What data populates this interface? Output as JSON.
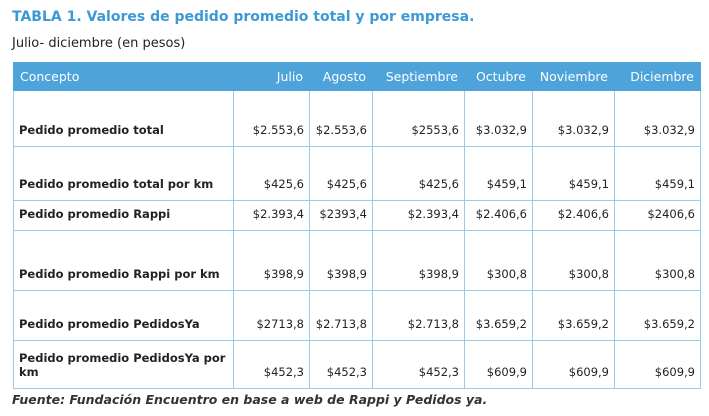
{
  "header": {
    "title": "TABLA 1. Valores de pedido promedio total y por empresa.",
    "subtitle": "Julio- diciembre (en pesos)"
  },
  "table": {
    "columns": [
      "Concepto",
      "Julio",
      "Agosto",
      "Septiembre",
      "Octubre",
      "Noviembre",
      "Diciembre"
    ],
    "rows": [
      [
        "Pedido promedio total",
        "$2.553,6",
        "$2.553,6",
        "$2553,6",
        "$3.032,9",
        "$3.032,9",
        "$3.032,9"
      ],
      [
        "Pedido promedio total por km",
        "$425,6",
        "$425,6",
        "$425,6",
        "$459,1",
        "$459,1",
        "$459,1"
      ],
      [
        "Pedido promedio Rappi",
        "$2.393,4",
        "$2393,4",
        "$2.393,4",
        "$2.406,6",
        "$2.406,6",
        "$2406,6"
      ],
      [
        "Pedido promedio Rappi por km",
        "$398,9",
        "$398,9",
        "$398,9",
        "$300,8",
        "$300,8",
        "$300,8"
      ],
      [
        "Pedido promedio PedidosYa",
        "$2713,8",
        "$2.713,8",
        "$2.713,8",
        "$3.659,2",
        "$3.659,2",
        "$3.659,2"
      ],
      [
        "Pedido promedio PedidosYa por km",
        "$452,3",
        "$452,3",
        "$452,3",
        "$609,9",
        "$609,9",
        "$609,9"
      ]
    ]
  },
  "footer": {
    "source": "Fuente: Fundación Encuentro en base a web de Rappi y Pedidos ya."
  }
}
